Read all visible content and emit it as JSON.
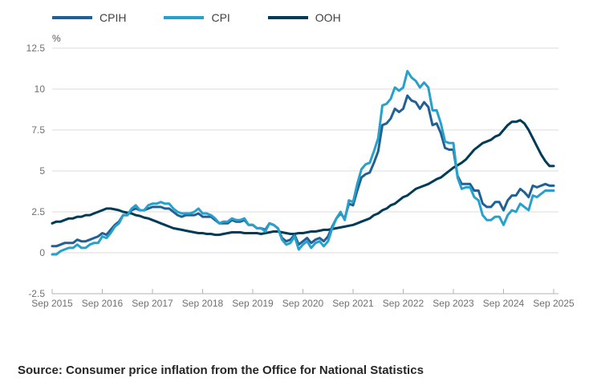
{
  "legend": {
    "items": [
      {
        "label": "CPIH",
        "color": "#206095"
      },
      {
        "label": "CPI",
        "color": "#27A0CC"
      },
      {
        "label": "OOH",
        "color": "#003C57"
      }
    ]
  },
  "source_note": "Source: Consumer price inflation from the Office for National Statistics",
  "chart_data": {
    "type": "line",
    "title": "",
    "unit_label": "%",
    "grid": "horizontal",
    "legend_position": "top",
    "x_frequency": "monthly",
    "x_start": "Sep 2015",
    "x_end": "Sep 2025",
    "x_tick_labels": [
      "Sep 2015",
      "Sep 2016",
      "Sep 2017",
      "Sep 2018",
      "Sep 2019",
      "Sep 2020",
      "Sep 2021",
      "Sep 2022",
      "Sep 2023",
      "Sep 2024",
      "Sep 2025"
    ],
    "y_ticks": [
      -2.5,
      0,
      2.5,
      5,
      7.5,
      10,
      12.5
    ],
    "y_tick_labels": [
      "-2.5",
      "0",
      "2.5",
      "5",
      "7.5",
      "10",
      "12.5"
    ],
    "ylim": [
      -2.5,
      12.5
    ],
    "axis_color": "#b3b3b3",
    "grid_color": "#dbdbdb",
    "tick_label_color": "#707071",
    "series": [
      {
        "name": "CPIH",
        "color": "#206095",
        "values": [
          0.4,
          0.4,
          0.5,
          0.6,
          0.6,
          0.6,
          0.8,
          0.7,
          0.7,
          0.8,
          0.9,
          1.0,
          1.2,
          1.1,
          1.4,
          1.7,
          1.9,
          2.3,
          2.3,
          2.6,
          2.7,
          2.6,
          2.6,
          2.7,
          2.8,
          2.8,
          2.8,
          2.7,
          2.7,
          2.5,
          2.3,
          2.2,
          2.3,
          2.3,
          2.3,
          2.4,
          2.2,
          2.2,
          2.2,
          2.0,
          1.8,
          1.8,
          1.8,
          2.0,
          1.9,
          1.9,
          2.0,
          1.7,
          1.7,
          1.5,
          1.5,
          1.4,
          1.8,
          1.7,
          1.5,
          0.9,
          0.7,
          0.8,
          1.1,
          0.5,
          0.7,
          0.9,
          0.6,
          0.8,
          0.9,
          0.7,
          1.0,
          1.6,
          2.1,
          2.4,
          2.1,
          3.0,
          2.9,
          3.8,
          4.6,
          4.8,
          4.9,
          5.5,
          6.2,
          7.8,
          7.9,
          8.2,
          8.8,
          8.6,
          8.8,
          9.6,
          9.3,
          9.2,
          8.8,
          9.2,
          8.9,
          7.8,
          7.9,
          7.3,
          6.4,
          6.3,
          6.3,
          4.7,
          4.2,
          4.2,
          4.2,
          3.8,
          3.8,
          3.0,
          2.8,
          2.8,
          3.1,
          3.1,
          2.6,
          3.2,
          3.5,
          3.5,
          3.9,
          3.7,
          3.4,
          4.1,
          4.0,
          4.1,
          4.2,
          4.1,
          4.1
        ]
      },
      {
        "name": "CPI",
        "color": "#27A0CC",
        "values": [
          -0.1,
          -0.1,
          0.1,
          0.2,
          0.3,
          0.3,
          0.5,
          0.3,
          0.3,
          0.5,
          0.6,
          0.6,
          1.0,
          0.9,
          1.2,
          1.6,
          1.8,
          2.3,
          2.3,
          2.7,
          2.9,
          2.6,
          2.6,
          2.9,
          3.0,
          3.0,
          3.1,
          3.0,
          3.0,
          2.7,
          2.5,
          2.4,
          2.4,
          2.4,
          2.5,
          2.7,
          2.4,
          2.4,
          2.3,
          2.1,
          1.8,
          1.9,
          1.9,
          2.1,
          2.0,
          2.0,
          2.1,
          1.7,
          1.7,
          1.5,
          1.5,
          1.3,
          1.8,
          1.7,
          1.5,
          0.8,
          0.5,
          0.6,
          1.0,
          0.2,
          0.5,
          0.7,
          0.3,
          0.6,
          0.7,
          0.4,
          0.7,
          1.5,
          2.1,
          2.5,
          2.0,
          3.2,
          3.1,
          4.2,
          5.1,
          5.4,
          5.5,
          6.2,
          7.0,
          9.0,
          9.1,
          9.4,
          10.1,
          9.9,
          10.1,
          11.1,
          10.7,
          10.5,
          10.1,
          10.4,
          10.1,
          8.7,
          8.7,
          7.9,
          6.8,
          6.7,
          6.7,
          4.6,
          3.9,
          4.0,
          4.0,
          3.4,
          3.2,
          2.3,
          2.0,
          2.0,
          2.2,
          2.2,
          1.7,
          2.3,
          2.6,
          2.5,
          3.0,
          2.8,
          2.6,
          3.5,
          3.4,
          3.6,
          3.8,
          3.8,
          3.8
        ]
      },
      {
        "name": "OOH",
        "color": "#003C57",
        "values": [
          1.8,
          1.9,
          1.9,
          2.0,
          2.1,
          2.1,
          2.2,
          2.2,
          2.3,
          2.3,
          2.4,
          2.5,
          2.6,
          2.7,
          2.7,
          2.65,
          2.6,
          2.5,
          2.45,
          2.4,
          2.3,
          2.25,
          2.15,
          2.1,
          2.0,
          1.9,
          1.8,
          1.7,
          1.6,
          1.5,
          1.45,
          1.4,
          1.35,
          1.3,
          1.25,
          1.2,
          1.2,
          1.15,
          1.15,
          1.1,
          1.1,
          1.15,
          1.2,
          1.25,
          1.25,
          1.25,
          1.2,
          1.2,
          1.2,
          1.2,
          1.15,
          1.2,
          1.25,
          1.3,
          1.3,
          1.25,
          1.2,
          1.15,
          1.15,
          1.2,
          1.2,
          1.25,
          1.3,
          1.3,
          1.35,
          1.4,
          1.4,
          1.45,
          1.5,
          1.55,
          1.6,
          1.65,
          1.7,
          1.8,
          1.9,
          2.0,
          2.1,
          2.3,
          2.4,
          2.6,
          2.7,
          2.9,
          3.0,
          3.2,
          3.4,
          3.5,
          3.7,
          3.9,
          4.0,
          4.1,
          4.2,
          4.35,
          4.5,
          4.6,
          4.8,
          5.0,
          5.2,
          5.35,
          5.5,
          5.7,
          6.0,
          6.3,
          6.5,
          6.7,
          6.8,
          6.9,
          7.1,
          7.2,
          7.5,
          7.8,
          8.0,
          8.0,
          8.1,
          7.9,
          7.5,
          7.0,
          6.5,
          6.0,
          5.6,
          5.3,
          5.3
        ]
      }
    ]
  }
}
